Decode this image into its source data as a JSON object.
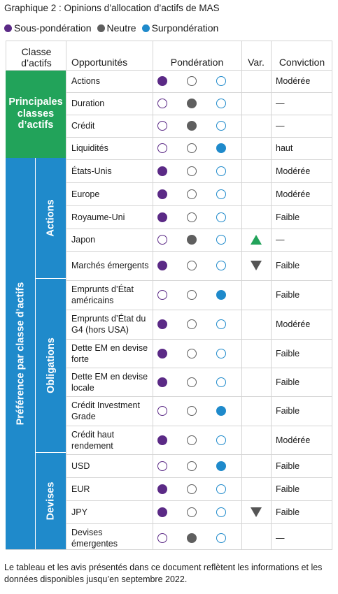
{
  "title": "Graphique 2 : Opinions d’allocation d’actifs de MAS",
  "legend": [
    {
      "label": "Sous-pondération",
      "color": "#5b2a86"
    },
    {
      "label": "Neutre",
      "color": "#5f5f5f"
    },
    {
      "label": "Surpondération",
      "color": "#1f8acb"
    }
  ],
  "colors": {
    "principal": "#22a35a",
    "preference": "#1f8acb",
    "up": "#22a35a",
    "down": "#555555"
  },
  "headers": {
    "classe": "Classe d’actifs",
    "opportunites": "Opportunités",
    "ponderation": "Pondération",
    "var": "Var.",
    "conviction": "Conviction"
  },
  "groups": {
    "principal": "Principales classes d’actifs",
    "preference": "Préférence par classe d’actifs"
  },
  "subgroups": [
    "Actions",
    "Obligations",
    "Devises"
  ],
  "rows": [
    {
      "label": "Actions",
      "weight": "under",
      "var": "",
      "conviction": "Modérée"
    },
    {
      "label": "Duration",
      "weight": "neutral",
      "var": "",
      "conviction": "—"
    },
    {
      "label": "Crédit",
      "weight": "neutral",
      "var": "",
      "conviction": "—"
    },
    {
      "label": "Liquidités",
      "weight": "over",
      "var": "",
      "conviction": "haut"
    },
    {
      "label": "États-Unis",
      "weight": "under",
      "var": "",
      "conviction": "Modérée"
    },
    {
      "label": "Europe",
      "weight": "under",
      "var": "",
      "conviction": "Modérée"
    },
    {
      "label": "Royaume-Uni",
      "weight": "under",
      "var": "",
      "conviction": "Faible"
    },
    {
      "label": "Japon",
      "weight": "neutral",
      "var": "up",
      "conviction": "—"
    },
    {
      "label": "Marchés émergents",
      "weight": "under",
      "var": "down",
      "conviction": "Faible"
    },
    {
      "label": "Emprunts d’État américains",
      "weight": "over",
      "var": "",
      "conviction": "Faible"
    },
    {
      "label": "Emprunts d’État du G4 (hors USA)",
      "weight": "under",
      "var": "",
      "conviction": "Modérée"
    },
    {
      "label": "Dette EM en devise forte",
      "weight": "under",
      "var": "",
      "conviction": "Faible"
    },
    {
      "label": "Dette EM en devise locale",
      "weight": "under",
      "var": "",
      "conviction": "Faible"
    },
    {
      "label": "Crédit Investment Grade",
      "weight": "over",
      "var": "",
      "conviction": "Faible"
    },
    {
      "label": "Crédit haut rendement",
      "weight": "under",
      "var": "",
      "conviction": "Modérée"
    },
    {
      "label": "USD",
      "weight": "over",
      "var": "",
      "conviction": "Faible"
    },
    {
      "label": "EUR",
      "weight": "under",
      "var": "",
      "conviction": "Faible"
    },
    {
      "label": "JPY",
      "weight": "under",
      "var": "down",
      "conviction": "Faible"
    },
    {
      "label": "Devises émergentes",
      "weight": "neutral",
      "var": "",
      "conviction": "—"
    }
  ],
  "footer": "Le tableau et les avis présentés dans ce document reflètent les informations et les données disponibles jusqu’en septembre 2022."
}
